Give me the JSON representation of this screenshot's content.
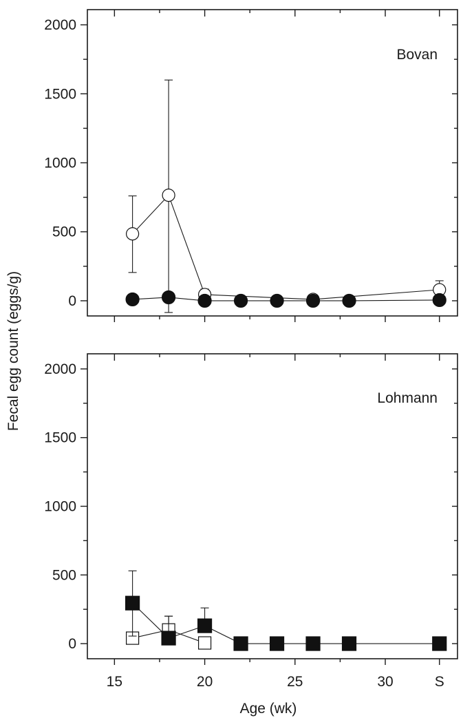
{
  "chart_data": {
    "type": "line",
    "ylabel": "Fecal egg count (eggs/g)",
    "xlabel": "Age (wk)",
    "x_ticks": [
      {
        "value": 15,
        "label": "15"
      },
      {
        "value": 20,
        "label": "20"
      },
      {
        "value": 25,
        "label": "25"
      },
      {
        "value": 30,
        "label": "30"
      },
      {
        "value": 33,
        "label": "S"
      }
    ],
    "y_ticks": [
      0,
      500,
      1000,
      1500,
      2000
    ],
    "xlim": [
      13.5,
      34.0
    ],
    "ylim": [
      -110,
      2110
    ],
    "grid": false,
    "panels": [
      {
        "label": "Bovan",
        "series": [
          {
            "marker": "circle",
            "filled": false,
            "x": [
              16,
              18,
              20,
              26,
              33
            ],
            "y": [
              485,
              765,
              45,
              10,
              80
            ],
            "err_low": [
              205,
              -85,
              5,
              null,
              20
            ],
            "err_high": [
              760,
              1600,
              85,
              null,
              145
            ]
          },
          {
            "marker": "circle",
            "filled": true,
            "x": [
              16,
              18,
              20,
              22,
              24,
              26,
              28,
              33
            ],
            "y": [
              10,
              25,
              0,
              0,
              0,
              0,
              0,
              5
            ],
            "err_low": [
              null,
              null,
              null,
              null,
              null,
              null,
              null,
              null
            ],
            "err_high": [
              null,
              null,
              null,
              null,
              null,
              null,
              null,
              null
            ]
          }
        ]
      },
      {
        "label": "Lohmann",
        "series": [
          {
            "marker": "square",
            "filled": false,
            "x": [
              16,
              18,
              20
            ],
            "y": [
              40,
              100,
              5
            ],
            "err_low": [
              20,
              null,
              null
            ],
            "err_high": [
              80,
              200,
              null
            ]
          },
          {
            "marker": "square",
            "filled": true,
            "x": [
              16,
              18,
              20,
              22,
              24,
              26,
              28,
              33
            ],
            "y": [
              295,
              40,
              130,
              0,
              0,
              0,
              0,
              0
            ],
            "err_low": [
              55,
              null,
              null,
              null,
              null,
              null,
              null,
              null
            ],
            "err_high": [
              530,
              200,
              260,
              null,
              null,
              null,
              null,
              null
            ]
          }
        ]
      }
    ]
  }
}
